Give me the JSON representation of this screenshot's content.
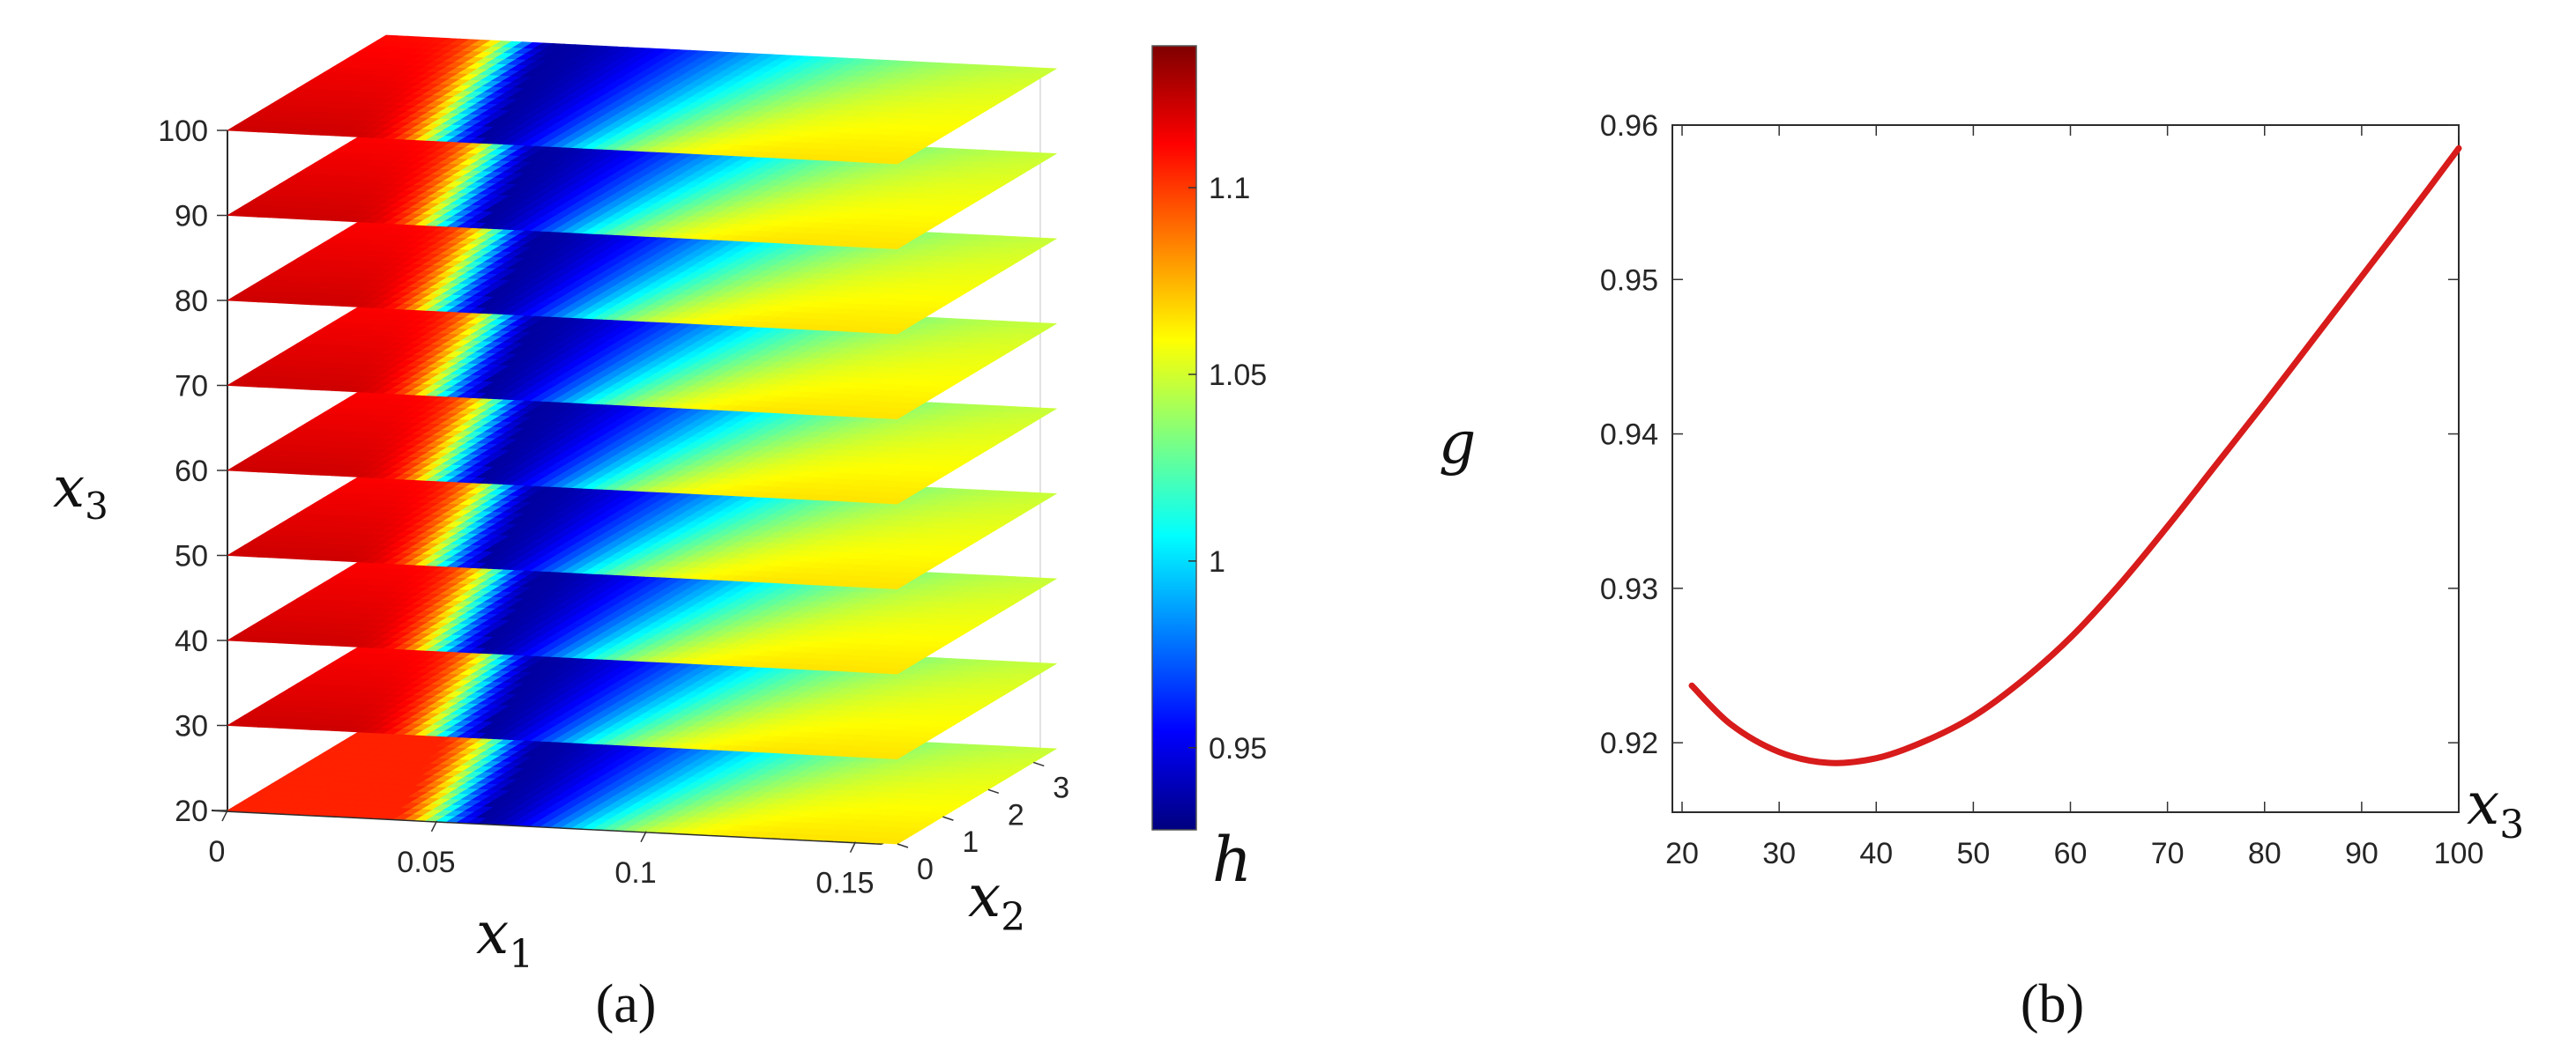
{
  "figure": {
    "panel_a_caption": "(a)",
    "panel_b_caption": "(b)"
  },
  "colors": {
    "line": "#d81b1b",
    "jet": [
      "#00007f",
      "#0000ff",
      "#007fff",
      "#00ffff",
      "#7fff7f",
      "#ffff00",
      "#ff7f00",
      "#ff0000",
      "#7f0000"
    ]
  },
  "chart_data": [
    {
      "type": "heatmap",
      "subtype": "stacked 3D slices",
      "x1_label": "x",
      "x1_sub": "1",
      "x2_label": "x",
      "x2_sub": "2",
      "x3_label": "x",
      "x3_sub": "3",
      "x1_ticks": [
        "0",
        "0.05",
        "0.1",
        "0.15"
      ],
      "x1_tick_values": [
        0,
        0.05,
        0.1,
        0.15
      ],
      "x1_range": [
        0,
        0.16
      ],
      "x2_ticks": [
        "0",
        "1",
        "2",
        "3"
      ],
      "x2_tick_values": [
        0,
        1,
        2,
        3
      ],
      "x2_range": [
        0,
        3.5
      ],
      "x3_ticks": [
        "20",
        "30",
        "40",
        "50",
        "60",
        "70",
        "80",
        "90",
        "100"
      ],
      "x3_levels": [
        20,
        30,
        40,
        50,
        60,
        70,
        80,
        90,
        100
      ],
      "x3_range": [
        20,
        100
      ],
      "colorbar": {
        "label": "h",
        "ticks": [
          "0.95",
          "1",
          "1.05",
          "1.1"
        ],
        "tick_values": [
          0.95,
          1.0,
          1.05,
          1.1
        ],
        "range": [
          0.928,
          1.138
        ]
      },
      "slice_value_model": {
        "base_red": 1.11,
        "right_yellow": 1.05,
        "valley_min": 0.935,
        "valley_x1_at_x2_0": 0.06,
        "valley_x1_at_x2_max": 0.04,
        "valley_width": 0.018
      }
    },
    {
      "type": "line",
      "title": "",
      "xlabel": "x",
      "xlabel_sub": "3",
      "ylabel": "g",
      "xlim": [
        19,
        100
      ],
      "ylim": [
        0.9155,
        0.96
      ],
      "xticks": [
        "20",
        "30",
        "40",
        "50",
        "60",
        "70",
        "80",
        "90",
        "100"
      ],
      "xtick_values": [
        20,
        30,
        40,
        50,
        60,
        70,
        80,
        90,
        100
      ],
      "yticks": [
        "0.92",
        "0.93",
        "0.94",
        "0.95",
        "0.96"
      ],
      "ytick_values": [
        0.92,
        0.93,
        0.94,
        0.95,
        0.96
      ],
      "series": [
        {
          "name": "g",
          "x": [
            21,
            25,
            30,
            35,
            40,
            45,
            50,
            55,
            60,
            65,
            70,
            75,
            80,
            85,
            90,
            95,
            100
          ],
          "values": [
            0.9237,
            0.9212,
            0.9194,
            0.9187,
            0.919,
            0.9201,
            0.9217,
            0.924,
            0.9268,
            0.9302,
            0.934,
            0.938,
            0.942,
            0.9461,
            0.9502,
            0.9543,
            0.9585
          ]
        }
      ]
    }
  ]
}
